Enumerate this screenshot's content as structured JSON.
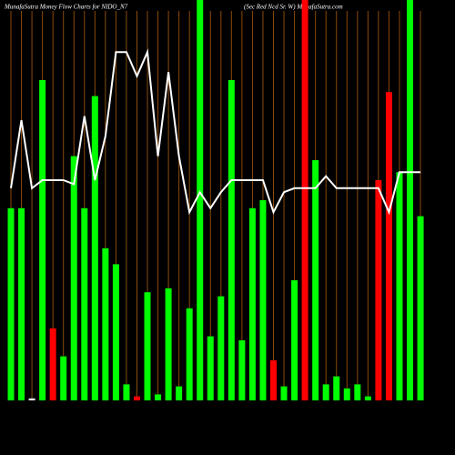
{
  "chart_data": {
    "type": "bar",
    "title": "MunafaSutra  Money Flow  Charts for NIDO_N7",
    "subtitle": "(Sec Red Ncd Sr. W) MunafaSutra.com",
    "ylim": [
      0,
      100
    ],
    "values": [
      48,
      48,
      0.5,
      80,
      18,
      11,
      61,
      48,
      76,
      38,
      34,
      4,
      1,
      27,
      1.5,
      28,
      3.5,
      23,
      100,
      16,
      26,
      80,
      15,
      48,
      50,
      10,
      3.5,
      30,
      100,
      60,
      4,
      6,
      3,
      4,
      1,
      55,
      77,
      57,
      100,
      46
    ],
    "colors": [
      "#00ff00",
      "#00ff00",
      "#eeeeee",
      "#00ff00",
      "#ff0000",
      "#00ff00",
      "#00ff00",
      "#00ff00",
      "#00ff00",
      "#00ff00",
      "#00ff00",
      "#00ff00",
      "#ff0000",
      "#00ff00",
      "#00ff00",
      "#00ff00",
      "#00ff00",
      "#00ff00",
      "#00ff00",
      "#00ff00",
      "#00ff00",
      "#00ff00",
      "#00ff00",
      "#00ff00",
      "#00ff00",
      "#ff0000",
      "#00ff00",
      "#00ff00",
      "#ff0000",
      "#00ff00",
      "#00ff00",
      "#00ff00",
      "#00ff00",
      "#00ff00",
      "#00ff00",
      "#ff0000",
      "#ff0000",
      "#00ff00",
      "#00ff00",
      "#00ff00"
    ],
    "line": {
      "color": "#ffffff",
      "values": [
        53,
        70,
        53,
        55,
        55,
        55,
        54,
        71,
        55,
        66,
        87,
        87,
        81,
        87,
        61,
        82,
        61,
        47,
        52,
        48,
        52,
        55,
        55,
        55,
        55,
        47,
        52,
        53,
        53,
        53,
        56,
        53,
        53,
        53,
        53,
        53,
        47,
        57,
        57,
        57
      ]
    },
    "category_line_color": "#8b4a0c"
  }
}
